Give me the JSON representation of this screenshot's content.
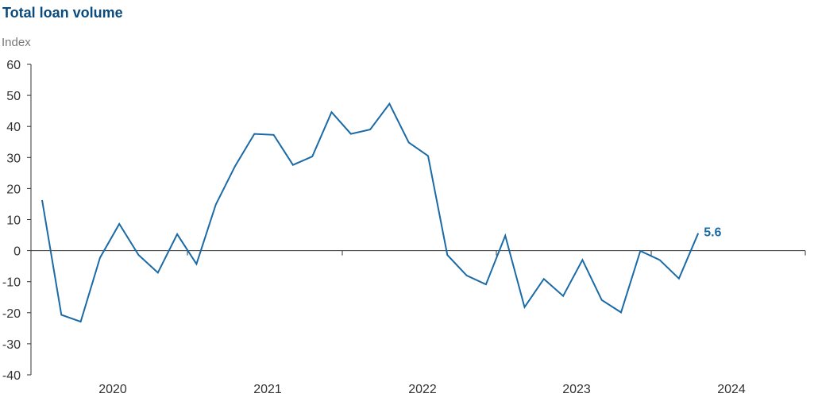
{
  "chart_data": {
    "type": "line",
    "title": "Total loan volume",
    "ylabel": "Index",
    "xlabel": "",
    "ylim": [
      -40,
      60
    ],
    "y_ticks": [
      -40,
      -30,
      -20,
      -10,
      0,
      10,
      20,
      30,
      40,
      50,
      60
    ],
    "x_tick_labels": [
      "2020",
      "2021",
      "2022",
      "2023",
      "2024"
    ],
    "grid": false,
    "line_color": "#1a6aa6",
    "annotation": {
      "text": "5.6",
      "color": "#1a6aa6"
    },
    "series": [
      {
        "values": [
          16.3,
          -20.7,
          -22.9,
          -2.3,
          8.6,
          -1.4,
          -7.1,
          5.3,
          -4.3,
          14.8,
          27.2,
          37.6,
          37.3,
          27.6,
          30.3,
          44.6,
          37.6,
          39.0,
          47.3,
          34.8,
          30.5,
          -1.4,
          -8.0,
          -10.9,
          4.8,
          -18.2,
          -9.1,
          -14.6,
          -3.0,
          -15.9,
          -19.9,
          -0.1,
          -3.0,
          -9.0,
          5.6
        ]
      }
    ]
  }
}
